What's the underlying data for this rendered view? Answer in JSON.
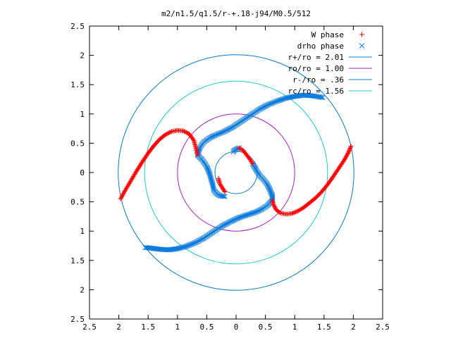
{
  "chart_data": {
    "type": "scatter",
    "title": "m2/n1.5/q1.5/r-+.18-j94/M0.5/512",
    "xlim": [
      -2.5,
      2.5
    ],
    "ylim": [
      -2.5,
      2.5
    ],
    "x_ticks": [
      -2.5,
      -2,
      -1.5,
      -1,
      -0.5,
      0,
      0.5,
      1,
      1.5,
      2,
      2.5
    ],
    "y_ticks": [
      -2.5,
      -2,
      -1.5,
      -1,
      -0.5,
      0,
      0.5,
      1,
      1.5,
      2,
      2.5
    ],
    "x_tick_labels": [
      "2.5",
      "2",
      "1.5",
      "1",
      "0.5",
      "0",
      "0.5",
      "1",
      "1.5",
      "2",
      "2.5"
    ],
    "y_tick_labels": [
      "2.5",
      "2",
      "1.5",
      "1",
      "0.5",
      "0",
      "0.5",
      "1",
      "1.5",
      "2",
      "2.5"
    ],
    "grid": false,
    "legend_position": "top-right",
    "series": [
      {
        "name": "W phase",
        "kind": "points",
        "marker": "+",
        "color": "#ff0000",
        "segments": [
          [
            [
              -1.97,
              -0.45
            ],
            [
              -1.9,
              -0.32
            ],
            [
              -1.8,
              -0.15
            ],
            [
              -1.7,
              0.02
            ],
            [
              -1.6,
              0.18
            ],
            [
              -1.5,
              0.33
            ],
            [
              -1.4,
              0.46
            ],
            [
              -1.3,
              0.57
            ],
            [
              -1.2,
              0.65
            ],
            [
              -1.1,
              0.7
            ],
            [
              -1.0,
              0.72
            ],
            [
              -0.9,
              0.71
            ],
            [
              -0.8,
              0.66
            ],
            [
              -0.72,
              0.55
            ],
            [
              -0.68,
              0.4
            ],
            [
              -0.66,
              0.3
            ]
          ],
          [
            [
              -0.3,
              -0.1
            ],
            [
              -0.27,
              -0.2
            ],
            [
              -0.23,
              -0.27
            ],
            [
              -0.19,
              -0.33
            ]
          ],
          [
            [
              0.05,
              0.42
            ],
            [
              0.12,
              0.38
            ],
            [
              0.18,
              0.3
            ],
            [
              0.24,
              0.22
            ],
            [
              0.28,
              0.15
            ]
          ],
          [
            [
              0.62,
              -0.47
            ],
            [
              0.64,
              -0.55
            ],
            [
              0.68,
              -0.63
            ],
            [
              0.75,
              -0.69
            ],
            [
              0.85,
              -0.71
            ],
            [
              0.95,
              -0.7
            ],
            [
              1.05,
              -0.66
            ],
            [
              1.15,
              -0.6
            ],
            [
              1.25,
              -0.52
            ],
            [
              1.35,
              -0.44
            ],
            [
              1.45,
              -0.34
            ],
            [
              1.55,
              -0.22
            ],
            [
              1.65,
              -0.08
            ],
            [
              1.75,
              0.07
            ],
            [
              1.85,
              0.22
            ],
            [
              1.92,
              0.35
            ],
            [
              1.96,
              0.45
            ]
          ]
        ]
      },
      {
        "name": "drho phase",
        "kind": "points",
        "marker": "×",
        "color": "#0a7ae0",
        "segments": [
          [
            [
              -0.66,
              0.3
            ],
            [
              -0.62,
              0.42
            ],
            [
              -0.55,
              0.52
            ],
            [
              -0.45,
              0.59
            ],
            [
              -0.35,
              0.64
            ],
            [
              -0.2,
              0.7
            ],
            [
              -0.05,
              0.78
            ],
            [
              0.1,
              0.88
            ],
            [
              0.25,
              0.98
            ],
            [
              0.4,
              1.08
            ],
            [
              0.55,
              1.16
            ],
            [
              0.7,
              1.22
            ],
            [
              0.85,
              1.27
            ],
            [
              1.0,
              1.3
            ],
            [
              1.15,
              1.32
            ],
            [
              1.3,
              1.31
            ],
            [
              1.42,
              1.29
            ],
            [
              1.48,
              1.28
            ]
          ],
          [
            [
              -0.66,
              0.3
            ],
            [
              -0.58,
              0.22
            ],
            [
              -0.5,
              0.1
            ],
            [
              -0.45,
              -0.02
            ],
            [
              -0.43,
              -0.1
            ],
            [
              -0.4,
              -0.2
            ],
            [
              -0.38,
              -0.3
            ],
            [
              -0.33,
              -0.36
            ],
            [
              -0.27,
              -0.4
            ],
            [
              -0.19,
              -0.41
            ]
          ],
          [
            [
              0.28,
              0.15
            ],
            [
              0.34,
              0.05
            ],
            [
              0.4,
              -0.05
            ],
            [
              0.47,
              -0.12
            ],
            [
              0.53,
              -0.2
            ],
            [
              0.58,
              -0.3
            ],
            [
              0.62,
              -0.4
            ],
            [
              0.62,
              -0.47
            ]
          ],
          [
            [
              0.62,
              -0.47
            ],
            [
              0.55,
              -0.55
            ],
            [
              0.45,
              -0.62
            ],
            [
              0.35,
              -0.67
            ],
            [
              0.2,
              -0.72
            ],
            [
              0.05,
              -0.77
            ],
            [
              -0.1,
              -0.84
            ],
            [
              -0.25,
              -0.92
            ],
            [
              -0.4,
              -1.02
            ],
            [
              -0.55,
              -1.12
            ],
            [
              -0.7,
              -1.2
            ],
            [
              -0.85,
              -1.26
            ],
            [
              -1.0,
              -1.3
            ],
            [
              -1.15,
              -1.32
            ],
            [
              -1.3,
              -1.31
            ],
            [
              -1.45,
              -1.29
            ],
            [
              -1.55,
              -1.28
            ]
          ],
          [
            [
              0.05,
              0.42
            ],
            [
              -0.03,
              0.38
            ],
            [
              -0.05,
              0.35
            ]
          ]
        ]
      },
      {
        "name": "r+/ro = 2.01",
        "kind": "circle",
        "radius": 2.01,
        "color": "#0a7ad0"
      },
      {
        "name": "ro/ro = 1.00",
        "kind": "circle",
        "radius": 1.0,
        "color": "#a020c0"
      },
      {
        "name": "r-/ro = .36",
        "kind": "circle",
        "radius": 0.36,
        "color": "#0a7ad0"
      },
      {
        "name": "rc/ro = 1.56",
        "kind": "circle",
        "radius": 1.56,
        "color": "#20c8d0"
      }
    ]
  }
}
